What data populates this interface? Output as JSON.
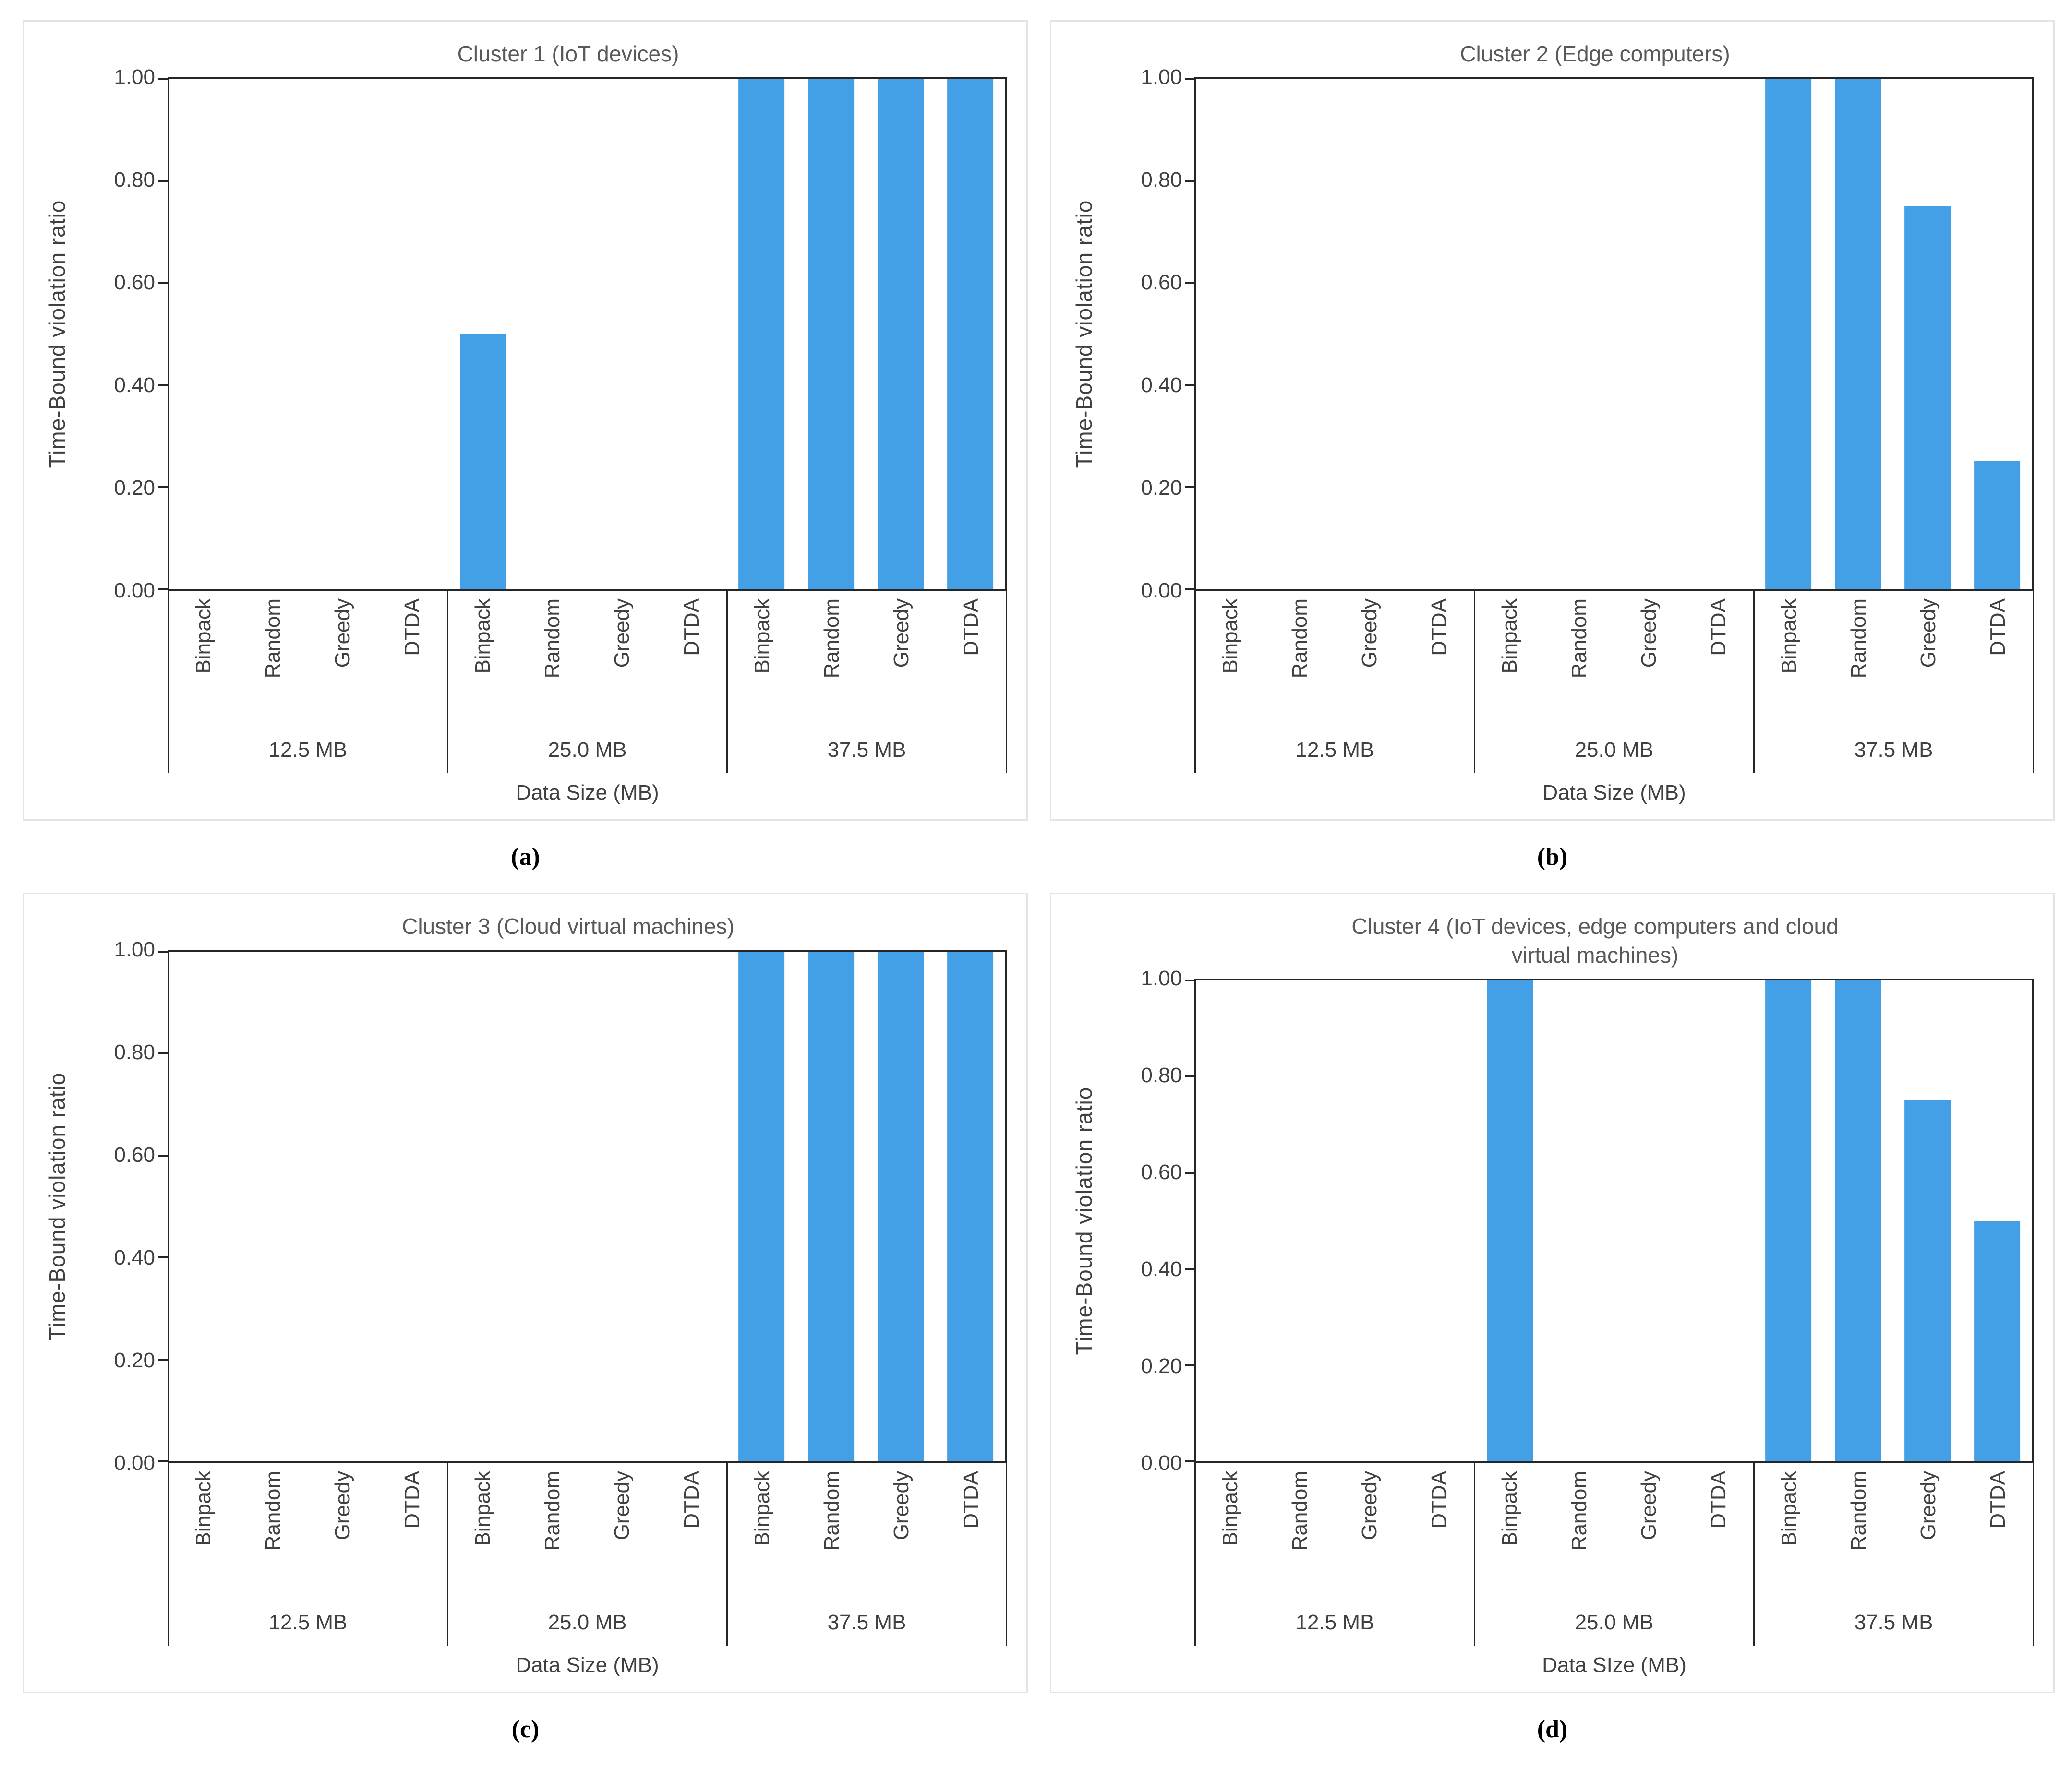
{
  "colors": {
    "bar": "#44A0E6",
    "axis_line": "#262626",
    "text": "#404040",
    "title_text": "#595959",
    "panel_border": "#e4e4e4"
  },
  "chart_data": [
    {
      "type": "bar",
      "caption": "(a)",
      "title": "Cluster 1 (IoT devices)",
      "title_lines": [
        "Cluster 1 (IoT devices)"
      ],
      "ylabel": "Time-Bound violation ratio",
      "xlabel": "Data Size (MB)",
      "ylim": [
        0,
        1
      ],
      "grid": false,
      "legend": "none",
      "yticks": [
        {
          "value": 1.0,
          "label": "1.00"
        },
        {
          "value": 0.8,
          "label": "0.80"
        },
        {
          "value": 0.6,
          "label": "0.60"
        },
        {
          "value": 0.4,
          "label": "0.40"
        },
        {
          "value": 0.2,
          "label": "0.20"
        },
        {
          "value": 0.0,
          "label": "0.00"
        }
      ],
      "groups": [
        "12.5 MB",
        "25.0 MB",
        "37.5 MB"
      ],
      "algorithms": [
        "Binpack",
        "Random",
        "Greedy",
        "DTDA"
      ],
      "values": [
        [
          0,
          0,
          0,
          0
        ],
        [
          0.5,
          0,
          0,
          0
        ],
        [
          1.0,
          1.0,
          1.0,
          1.0
        ]
      ]
    },
    {
      "type": "bar",
      "caption": "(b)",
      "title": "Cluster 2 (Edge computers)",
      "title_lines": [
        "Cluster 2 (Edge computers)"
      ],
      "ylabel": "Time-Bound violation ratio",
      "xlabel": "Data Size (MB)",
      "ylim": [
        0,
        1
      ],
      "grid": false,
      "legend": "none",
      "yticks": [
        {
          "value": 1.0,
          "label": "1.00"
        },
        {
          "value": 0.8,
          "label": "0.80"
        },
        {
          "value": 0.6,
          "label": "0.60"
        },
        {
          "value": 0.4,
          "label": "0.40"
        },
        {
          "value": 0.2,
          "label": "0.20"
        },
        {
          "value": 0.0,
          "label": "0.00"
        }
      ],
      "groups": [
        "12.5 MB",
        "25.0 MB",
        "37.5 MB"
      ],
      "algorithms": [
        "Binpack",
        "Random",
        "Greedy",
        "DTDA"
      ],
      "values": [
        [
          0,
          0,
          0,
          0
        ],
        [
          0,
          0,
          0,
          0
        ],
        [
          1.0,
          1.0,
          0.75,
          0.25
        ]
      ]
    },
    {
      "type": "bar",
      "caption": "(c)",
      "title": "Cluster 3 (Cloud virtual machines)",
      "title_lines": [
        "Cluster 3 (Cloud virtual machines)"
      ],
      "ylabel": "Time-Bound violation ratio",
      "xlabel": "Data Size (MB)",
      "ylim": [
        0,
        1
      ],
      "grid": false,
      "legend": "none",
      "yticks": [
        {
          "value": 1.0,
          "label": "1.00"
        },
        {
          "value": 0.8,
          "label": "0.80"
        },
        {
          "value": 0.6,
          "label": "0.60"
        },
        {
          "value": 0.4,
          "label": "0.40"
        },
        {
          "value": 0.2,
          "label": "0.20"
        },
        {
          "value": 0.0,
          "label": "0.00"
        }
      ],
      "groups": [
        "12.5 MB",
        "25.0 MB",
        "37.5 MB"
      ],
      "algorithms": [
        "Binpack",
        "Random",
        "Greedy",
        "DTDA"
      ],
      "values": [
        [
          0,
          0,
          0,
          0
        ],
        [
          0,
          0,
          0,
          0
        ],
        [
          1.0,
          1.0,
          1.0,
          1.0
        ]
      ]
    },
    {
      "type": "bar",
      "caption": "(d)",
      "title": "Cluster 4 (IoT devices, edge computers and cloud virtual machines)",
      "title_lines": [
        "Cluster 4 (IoT devices, edge computers and cloud",
        "virtual machines)"
      ],
      "ylabel": "Time-Bound violation ratio",
      "xlabel": "Data SIze (MB)",
      "ylim": [
        0,
        1
      ],
      "grid": false,
      "legend": "none",
      "yticks": [
        {
          "value": 1.0,
          "label": "1.00"
        },
        {
          "value": 0.8,
          "label": "0.80"
        },
        {
          "value": 0.6,
          "label": "0.60"
        },
        {
          "value": 0.4,
          "label": "0.40"
        },
        {
          "value": 0.2,
          "label": "0.20"
        },
        {
          "value": 0.0,
          "label": "0.00"
        }
      ],
      "groups": [
        "12.5 MB",
        "25.0 MB",
        "37.5 MB"
      ],
      "algorithms": [
        "Binpack",
        "Random",
        "Greedy",
        "DTDA"
      ],
      "values": [
        [
          0,
          0,
          0,
          0
        ],
        [
          1.0,
          0,
          0,
          0
        ],
        [
          1.0,
          1.0,
          0.75,
          0.5
        ]
      ]
    }
  ]
}
